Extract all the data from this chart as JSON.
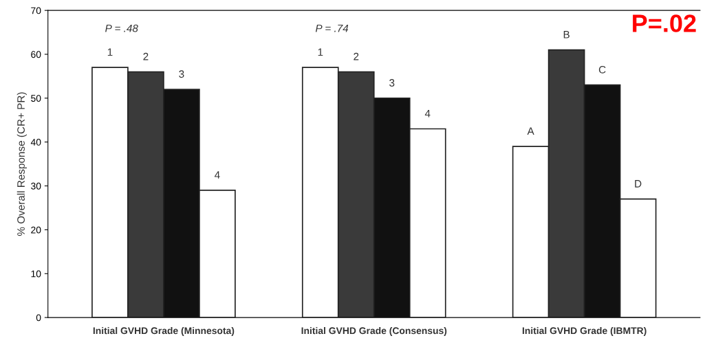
{
  "chart_data": {
    "type": "bar",
    "ylabel": "% Overall Response (CR+ PR)",
    "categories": [
      "Initial GVHD Grade (Minnesota)",
      "Initial GVHD Grade (Consensus)",
      "Initial GVHD Grade (IBMTR)"
    ],
    "series": [
      {
        "color": "#ffffff",
        "values": [
          57,
          57,
          39
        ]
      },
      {
        "color": "#3a3a3a",
        "values": [
          56,
          56,
          61
        ]
      },
      {
        "color": "#111111",
        "values": [
          52,
          50,
          53
        ]
      },
      {
        "color": "#ffffff",
        "values": [
          29,
          43,
          27
        ]
      }
    ],
    "ylim": [
      0,
      70
    ],
    "yticks": [
      0,
      10,
      20,
      30,
      40,
      50,
      60,
      70
    ],
    "annotations": [
      "P = .48",
      "P = .74",
      "P=.02",
      "1",
      "2",
      "3",
      "4",
      "1",
      "2",
      "3",
      "4",
      "A",
      "B",
      "C",
      "D"
    ],
    "grid": false,
    "legend": false
  }
}
